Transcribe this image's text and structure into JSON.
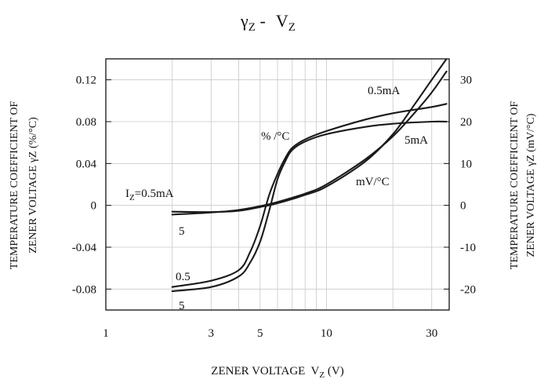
{
  "chart_data": {
    "type": "line",
    "title": {
      "main": "γ",
      "main_sub": "Z",
      "sep": " - ",
      "right": "V",
      "right_sub": "Z"
    },
    "xlabel": {
      "text": "ZENER VOLTAGE  V",
      "sub": "Z",
      "suffix": " (V)"
    },
    "ylabel_left": [
      "TEMPERATURE COEFFICIENT OF",
      "ZENER VOLTAGE  γZ (%/°C)"
    ],
    "ylabel_right": [
      "TEMPERATURE COEFFICIENT OF",
      "ZENER VOLTAGE  γZ (mV/°C)"
    ],
    "x_scale": "log",
    "xlim": [
      1,
      36
    ],
    "x_ticks": [
      1,
      3,
      5,
      10,
      30
    ],
    "ylim_left": [
      -0.1,
      0.14
    ],
    "y_ticks_left": [
      -0.08,
      -0.04,
      0,
      0.04,
      0.08,
      0.12
    ],
    "y_tick_labels_left": [
      "-0.08",
      "-0.04",
      "0",
      "0.04",
      "0.08",
      "0.12"
    ],
    "ylim_right": [
      -25,
      35
    ],
    "y_ticks_right": [
      -20,
      -10,
      0,
      10,
      20,
      30
    ],
    "y_tick_labels_right": [
      "-20",
      "-10",
      "0",
      "10",
      "20",
      "30"
    ],
    "grid": true,
    "series": [
      {
        "name": "0.5",
        "unit": "%/°C",
        "axis": "left",
        "x": [
          2,
          3,
          4,
          4.5,
          5,
          5.5,
          6,
          6.5,
          7,
          8,
          10,
          15,
          20,
          30,
          35
        ],
        "y": [
          -0.078,
          -0.072,
          -0.062,
          -0.045,
          -0.02,
          0.01,
          0.03,
          0.045,
          0.055,
          0.063,
          0.071,
          0.082,
          0.088,
          0.094,
          0.097
        ]
      },
      {
        "name": "5",
        "unit": "%/°C",
        "axis": "left",
        "x": [
          2,
          3,
          4,
          4.5,
          5,
          5.5,
          6,
          6.5,
          7,
          8,
          10,
          15,
          20,
          30,
          35
        ],
        "y": [
          -0.082,
          -0.078,
          -0.068,
          -0.055,
          -0.035,
          -0.005,
          0.025,
          0.042,
          0.053,
          0.061,
          0.068,
          0.075,
          0.078,
          0.08,
          0.08
        ]
      },
      {
        "name": "0.5mA",
        "unit": "mV/°C",
        "axis": "right",
        "x": [
          2,
          3,
          4,
          5,
          6,
          8,
          10,
          15,
          20,
          25,
          30,
          35
        ],
        "y": [
          -1.5,
          -1.6,
          -1.3,
          -0.4,
          0.5,
          2.5,
          4.5,
          10.5,
          17,
          24,
          30,
          35
        ]
      },
      {
        "name": "5mA",
        "unit": "mV/°C",
        "axis": "right",
        "x": [
          2,
          3,
          4,
          5,
          6,
          8,
          10,
          15,
          20,
          25,
          30,
          35
        ],
        "y": [
          -2.2,
          -1.7,
          -1.1,
          -0.2,
          0.8,
          2.8,
          5,
          11,
          16.5,
          22,
          27,
          32
        ]
      }
    ],
    "annotations": {
      "pct_per_c": "% /°C",
      "mv_per_c": "mV/°C",
      "lbl_05mA_top": "0.5mA",
      "lbl_5mA": "5mA",
      "iz_main": "I",
      "iz_sub": "Z",
      "iz_rest": "=0.5mA",
      "lbl_5_upper": "5",
      "lbl_05_lower": "0.5",
      "lbl_5_lower": "5"
    }
  }
}
